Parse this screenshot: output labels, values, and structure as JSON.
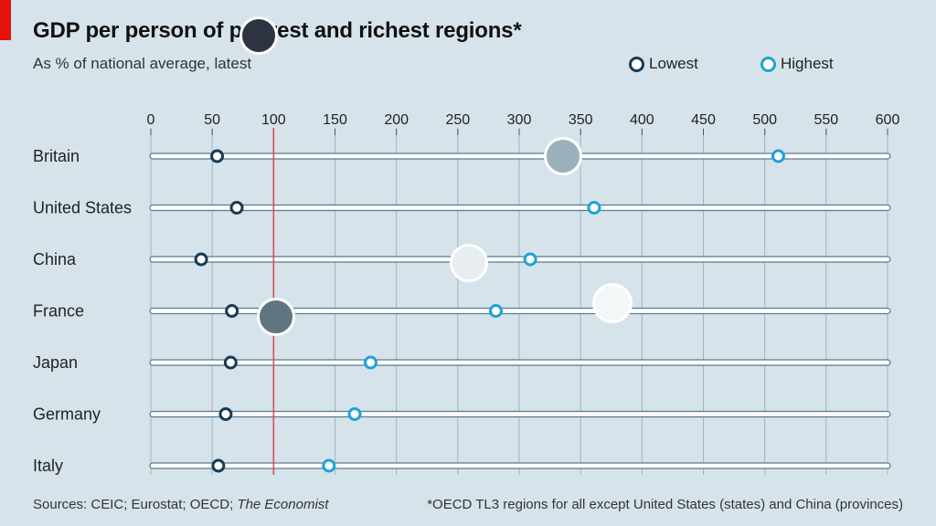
{
  "title": "GDP per person of poorest and richest regions*",
  "subtitle": "As % of national average, latest",
  "legend": {
    "lowest": "Lowest",
    "highest": "Highest"
  },
  "sources_label": "Sources: CEIC; Eurostat; OECD; ",
  "sources_italic": "The Economist",
  "footnote": "*OECD TL3 regions for all except United States (states) and China (provinces)",
  "colors": {
    "background": "#d6e3eb",
    "lowest": "#173b55",
    "highest": "#1ea2d8",
    "reference_line": "#d64a4a",
    "accent_tag": "#e3120b"
  },
  "chart_data": {
    "type": "dot-range",
    "xlabel": "",
    "ylabel": "",
    "xlim": [
      0,
      600
    ],
    "x_ticks": [
      0,
      50,
      100,
      150,
      200,
      250,
      300,
      350,
      400,
      450,
      500,
      550,
      600
    ],
    "reference_value": 100,
    "categories": [
      "Britain",
      "United States",
      "China",
      "France",
      "Japan",
      "Germany",
      "Italy"
    ],
    "series": [
      {
        "name": "Lowest",
        "values": [
          54,
          70,
          41,
          66,
          65,
          61,
          55
        ]
      },
      {
        "name": "Highest",
        "values": [
          511,
          361,
          309,
          281,
          179,
          166,
          145
        ]
      }
    ]
  }
}
